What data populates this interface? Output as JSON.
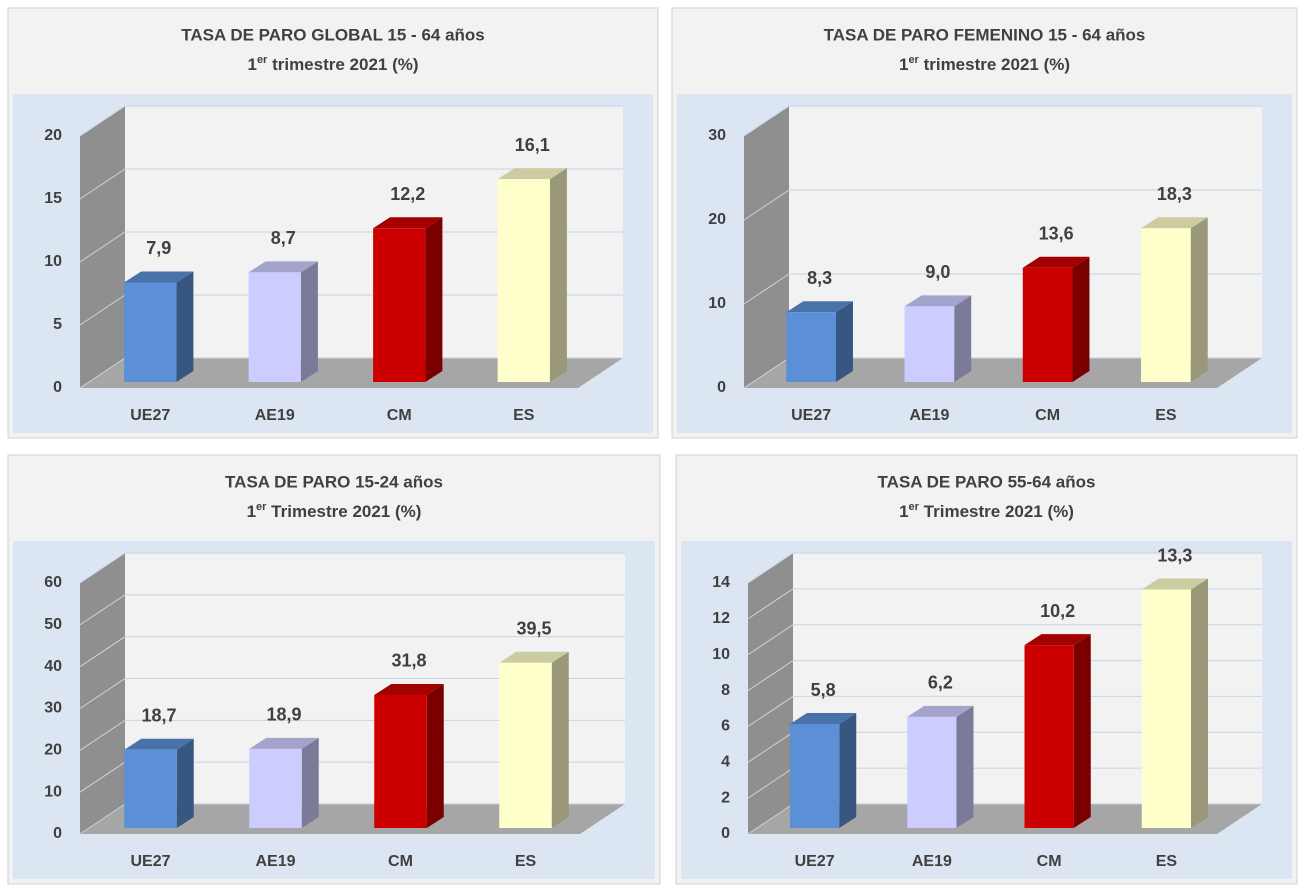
{
  "chart_data": [
    {
      "type": "bar3d",
      "title": "TASA DE PARO GLOBAL 15 - 64  años",
      "subtitle": [
        "1",
        "er",
        " trimestre 2021 (%)"
      ],
      "categories": [
        "UE27",
        "AE19",
        "CM",
        "ES"
      ],
      "values": [
        7.9,
        8.7,
        12.2,
        16.1
      ],
      "value_labels": [
        "7,9",
        "8,7",
        "12,2",
        "16,1"
      ],
      "colors": [
        "#5b8fd6",
        "#ccccff",
        "#cc0000",
        "#ffffcc"
      ],
      "ylim": [
        0,
        20
      ],
      "yticks": [
        0,
        5,
        10,
        15,
        20
      ],
      "grid": true
    },
    {
      "type": "bar3d",
      "title": "TASA DE PARO FEMENINO  15 - 64 años",
      "subtitle": [
        "1",
        "er",
        " trimestre 2021 (%)"
      ],
      "categories": [
        "UE27",
        "AE19",
        "CM",
        "ES"
      ],
      "values": [
        8.3,
        9.0,
        13.6,
        18.3
      ],
      "value_labels": [
        "8,3",
        "9,0",
        "13,6",
        "18,3"
      ],
      "colors": [
        "#5b8fd6",
        "#ccccff",
        "#cc0000",
        "#ffffcc"
      ],
      "ylim": [
        0,
        30
      ],
      "yticks": [
        0,
        10,
        20,
        30
      ],
      "grid": true
    },
    {
      "type": "bar3d",
      "title": "TASA DE PARO 15-24 años",
      "subtitle": [
        "1",
        "er",
        " Trimestre 2021 (%)"
      ],
      "categories": [
        "UE27",
        "AE19",
        "CM",
        "ES"
      ],
      "values": [
        18.7,
        18.9,
        31.8,
        39.5
      ],
      "value_labels": [
        "18,7",
        "18,9",
        "31,8",
        "39,5"
      ],
      "colors": [
        "#5b8fd6",
        "#ccccff",
        "#cc0000",
        "#ffffcc"
      ],
      "ylim": [
        0,
        60
      ],
      "yticks": [
        0,
        10,
        20,
        30,
        40,
        50,
        60
      ],
      "grid": true
    },
    {
      "type": "bar3d",
      "title": "TASA DE PARO 55-64 años",
      "subtitle": [
        "1",
        "er",
        " Trimestre 2021 (%)"
      ],
      "categories": [
        "UE27",
        "AE19",
        "CM",
        "ES"
      ],
      "values": [
        5.8,
        6.2,
        10.2,
        13.3
      ],
      "value_labels": [
        "5,8",
        "6,2",
        "10,2",
        "13,3"
      ],
      "colors": [
        "#5b8fd6",
        "#ccccff",
        "#cc0000",
        "#ffffcc"
      ],
      "ylim": [
        0,
        14
      ],
      "yticks": [
        0,
        2,
        4,
        6,
        8,
        10,
        12,
        14
      ],
      "grid": true
    }
  ]
}
